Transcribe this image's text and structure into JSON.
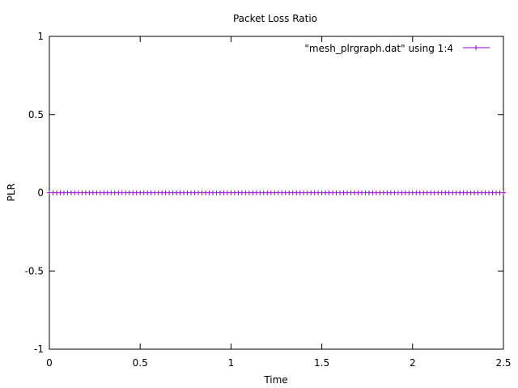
{
  "chart_data": {
    "type": "line",
    "title": "Packet Loss Ratio",
    "xlabel": "Time",
    "ylabel": "PLR",
    "xlim": [
      0,
      2.5
    ],
    "ylim": [
      -1,
      1
    ],
    "xticks": [
      "0",
      "0.5",
      "1",
      "1.5",
      "2",
      "2.5"
    ],
    "yticks": [
      "1",
      "0.5",
      "0",
      "-0.5",
      "-1"
    ],
    "grid": false,
    "legend_position": "top-right",
    "series": [
      {
        "name": "\"mesh_plrgraph.dat\" using 1:4",
        "color": "#9400d3",
        "marker": "plus",
        "x_start": 0,
        "x_end": 2.5,
        "x_step": 0.02,
        "y": 0
      }
    ]
  }
}
